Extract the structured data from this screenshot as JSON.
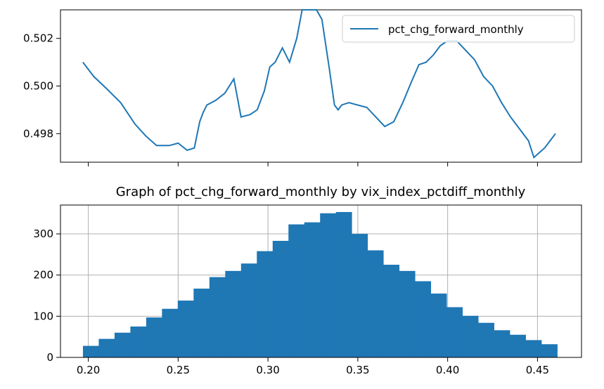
{
  "colors": {
    "series": "#1f77b4",
    "grid": "#b0b0b0",
    "axes": "#000000",
    "legend_border": "#cccccc"
  },
  "chart_data": [
    {
      "type": "line",
      "title": "",
      "xlabel": "",
      "ylabel": "",
      "grid": false,
      "legend": "upper-right",
      "ylim": [
        0.4968,
        0.5032
      ],
      "yticks": [
        0.498,
        0.5,
        0.502
      ],
      "ytick_labels": [
        "0.498",
        "0.500",
        "0.502"
      ],
      "xlim": [
        0.1845,
        0.4745
      ],
      "xticks": [
        0.2,
        0.25,
        0.3,
        0.35,
        0.4,
        0.45
      ],
      "series": [
        {
          "name": "pct_chg_forward_monthly",
          "x": [
            0.197,
            0.203,
            0.21,
            0.218,
            0.226,
            0.232,
            0.238,
            0.245,
            0.25,
            0.255,
            0.259,
            0.262,
            0.264,
            0.266,
            0.271,
            0.276,
            0.281,
            0.285,
            0.29,
            0.294,
            0.298,
            0.301,
            0.304,
            0.308,
            0.312,
            0.316,
            0.319,
            0.322,
            0.325,
            0.327,
            0.33,
            0.334,
            0.337,
            0.339,
            0.341,
            0.345,
            0.35,
            0.355,
            0.36,
            0.365,
            0.37,
            0.375,
            0.38,
            0.384,
            0.388,
            0.392,
            0.396,
            0.4,
            0.405,
            0.41,
            0.415,
            0.42,
            0.425,
            0.43,
            0.435,
            0.44,
            0.445,
            0.448,
            0.451,
            0.454,
            0.457,
            0.46
          ],
          "y": [
            0.501,
            0.5004,
            0.4999,
            0.4993,
            0.4984,
            0.4979,
            0.4975,
            0.4975,
            0.4976,
            0.4973,
            0.4974,
            0.4985,
            0.4989,
            0.4992,
            0.4994,
            0.4997,
            0.5003,
            0.4987,
            0.4988,
            0.499,
            0.4998,
            0.5008,
            0.501,
            0.5016,
            0.501,
            0.502,
            0.5032,
            0.5032,
            0.5032,
            0.5032,
            0.5028,
            0.5008,
            0.4992,
            0.499,
            0.4992,
            0.4993,
            0.4992,
            0.4991,
            0.4987,
            0.4983,
            0.4985,
            0.4993,
            0.5002,
            0.5009,
            0.501,
            0.5013,
            0.5017,
            0.5019,
            0.5019,
            0.5015,
            0.5011,
            0.5004,
            0.5,
            0.4993,
            0.4987,
            0.4982,
            0.4977,
            0.497,
            0.4972,
            0.4974,
            0.4977,
            0.498
          ]
        }
      ]
    },
    {
      "type": "bar",
      "title": "Graph of pct_chg_forward_monthly by vix_index_pctdiff_monthly",
      "xlabel": "",
      "ylabel": "",
      "grid": true,
      "xlim": [
        0.1845,
        0.4745
      ],
      "ylim": [
        0,
        370
      ],
      "xticks": [
        0.2,
        0.25,
        0.3,
        0.35,
        0.4,
        0.45
      ],
      "xtick_labels": [
        "0.20",
        "0.25",
        "0.30",
        "0.35",
        "0.40",
        "0.45"
      ],
      "yticks": [
        0,
        100,
        200,
        300
      ],
      "ytick_labels": [
        "0",
        "100",
        "200",
        "300"
      ],
      "bin_start": 0.197,
      "bin_width": 0.0088,
      "values": [
        28,
        45,
        60,
        75,
        97,
        118,
        138,
        167,
        195,
        210,
        228,
        258,
        283,
        323,
        328,
        350,
        353,
        300,
        260,
        225,
        210,
        185,
        155,
        122,
        101,
        84,
        66,
        55,
        42,
        32
      ]
    }
  ]
}
